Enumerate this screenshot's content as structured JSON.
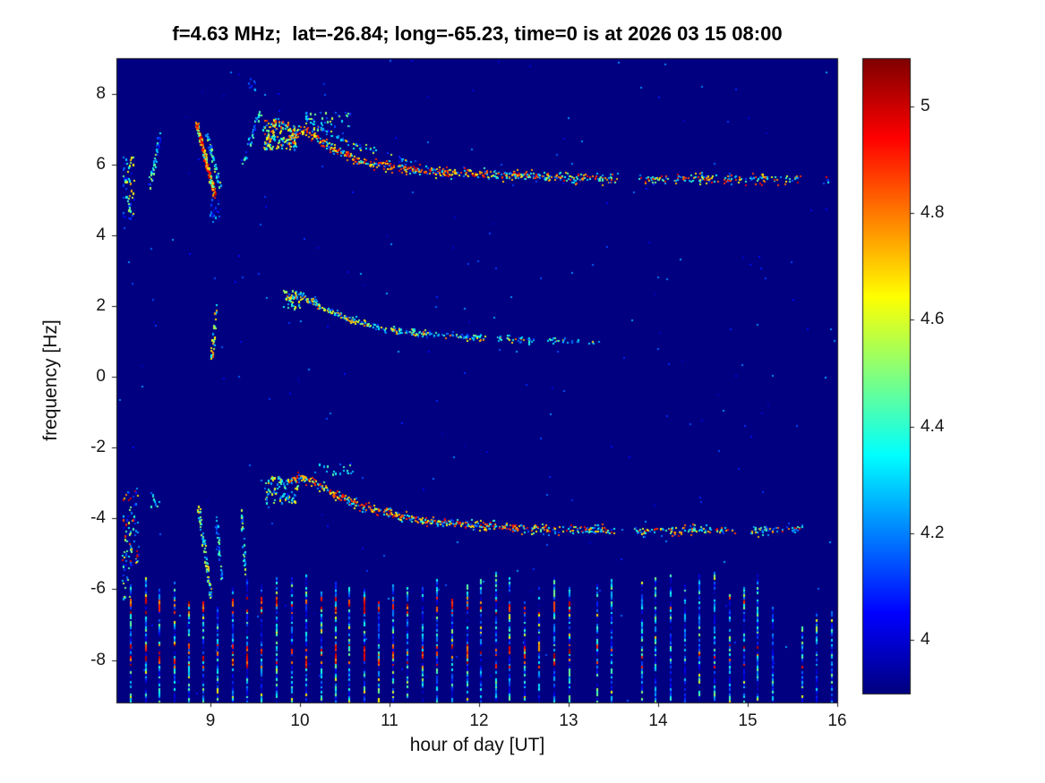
{
  "figure": {
    "background": "#ffffff",
    "text_color": "#111111"
  },
  "chart_data": {
    "type": "heatmap",
    "title": "f=4.63 MHz;  lat=-26.84; long=-65.23, time=0 is at 2026 03 15 08:00",
    "xlabel": "hour of day [UT]",
    "ylabel": "frequency [Hz]",
    "x_range": [
      7.95,
      16.0
    ],
    "y_range": [
      -9.2,
      9.0
    ],
    "x_ticks": [
      9,
      10,
      11,
      12,
      13,
      14,
      15,
      16
    ],
    "y_ticks": [
      8,
      6,
      4,
      2,
      0,
      -2,
      -4,
      -6,
      -8
    ],
    "grid": false,
    "colormap": "jet",
    "background_value_color": "#000080",
    "colorbar": {
      "range": [
        3.9,
        5.09
      ],
      "ticks": [
        4,
        4.2,
        4.4,
        4.6,
        4.8,
        5
      ],
      "position": "right"
    },
    "noise": {
      "count": 260,
      "vmin": 3.96,
      "vmax": 4.25
    },
    "traces": [
      {
        "name": "upper-doppler-trace",
        "points": [
          [
            9.88,
            6.75
          ],
          [
            10.0,
            7.0
          ],
          [
            10.05,
            6.95
          ],
          [
            10.15,
            6.8
          ],
          [
            10.3,
            6.55
          ],
          [
            10.5,
            6.3
          ],
          [
            10.7,
            6.1
          ],
          [
            11.0,
            5.95
          ],
          [
            11.3,
            5.85
          ],
          [
            11.7,
            5.78
          ],
          [
            12.2,
            5.72
          ],
          [
            12.7,
            5.68
          ],
          [
            13.2,
            5.62
          ],
          [
            13.7,
            5.6
          ],
          [
            14.2,
            5.62
          ],
          [
            14.7,
            5.63
          ],
          [
            15.2,
            5.6
          ],
          [
            15.55,
            5.6
          ],
          [
            15.9,
            5.58
          ]
        ],
        "jitter": 0.18,
        "hot": [
          4.6,
          5.0
        ],
        "cold": [
          4.1,
          4.5
        ],
        "hot_prob": [
          0.8,
          0.35
        ],
        "density": [
          1.0,
          0.45
        ],
        "gaps": [
          [
            13.55,
            13.78
          ],
          [
            15.6,
            15.82
          ]
        ]
      },
      {
        "name": "upper-secondary-trace",
        "points": [
          [
            10.05,
            7.35
          ],
          [
            10.3,
            6.95
          ],
          [
            10.6,
            6.55
          ],
          [
            10.95,
            6.3
          ],
          [
            11.3,
            6.08
          ]
        ],
        "jitter": 0.12,
        "hot": [
          4.5,
          4.8
        ],
        "cold": [
          4.05,
          4.4
        ],
        "hot_prob": [
          0.25,
          0.1
        ],
        "density": [
          0.35,
          0.15
        ],
        "gaps": []
      },
      {
        "name": "middle-doppler-trace",
        "points": [
          [
            9.85,
            2.25
          ],
          [
            10.0,
            2.3
          ],
          [
            10.15,
            2.1
          ],
          [
            10.35,
            1.85
          ],
          [
            10.6,
            1.6
          ],
          [
            10.9,
            1.4
          ],
          [
            11.3,
            1.25
          ],
          [
            11.8,
            1.15
          ],
          [
            12.3,
            1.08
          ],
          [
            12.8,
            1.02
          ],
          [
            13.3,
            1.0
          ]
        ],
        "jitter": 0.12,
        "hot": [
          4.55,
          4.85
        ],
        "cold": [
          4.1,
          4.5
        ],
        "hot_prob": [
          0.5,
          0.08
        ],
        "density": [
          0.9,
          0.3
        ],
        "gaps": [
          [
            12.05,
            12.2
          ],
          [
            12.6,
            12.75
          ]
        ]
      },
      {
        "name": "lower-doppler-trace",
        "points": [
          [
            9.88,
            -2.95
          ],
          [
            10.0,
            -2.8
          ],
          [
            10.1,
            -2.9
          ],
          [
            10.25,
            -3.1
          ],
          [
            10.45,
            -3.4
          ],
          [
            10.7,
            -3.65
          ],
          [
            11.0,
            -3.85
          ],
          [
            11.4,
            -4.05
          ],
          [
            11.9,
            -4.15
          ],
          [
            12.4,
            -4.25
          ],
          [
            12.9,
            -4.3
          ],
          [
            13.4,
            -4.3
          ],
          [
            13.9,
            -4.35
          ],
          [
            14.4,
            -4.3
          ],
          [
            14.9,
            -4.35
          ],
          [
            15.4,
            -4.3
          ],
          [
            15.6,
            -4.3
          ]
        ],
        "jitter": 0.16,
        "hot": [
          4.6,
          5.0
        ],
        "cold": [
          4.1,
          4.5
        ],
        "hot_prob": [
          0.75,
          0.3
        ],
        "density": [
          1.0,
          0.4
        ],
        "gaps": [
          [
            13.5,
            13.72
          ],
          [
            14.85,
            15.0
          ]
        ]
      }
    ],
    "clusters": [
      {
        "type": "box",
        "x0": 8.01,
        "x1": 8.14,
        "y0": 4.5,
        "y1": 6.3,
        "count": 55,
        "vmin": 4.0,
        "vmax": 4.75,
        "bias": 1.2
      },
      {
        "type": "line",
        "x0": 8.31,
        "y0": 5.35,
        "x1": 8.43,
        "y1": 6.85,
        "w": 0.25,
        "count": 45,
        "vmin": 4.05,
        "vmax": 4.55,
        "bias": 1.2
      },
      {
        "type": "line",
        "x0": 8.84,
        "y0": 7.15,
        "x1": 9.04,
        "y1": 5.15,
        "w": 0.18,
        "count": 200,
        "vmin": 4.3,
        "vmax": 5.05,
        "bias": 0.6
      },
      {
        "type": "line",
        "x0": 8.95,
        "y0": 6.9,
        "x1": 9.1,
        "y1": 5.4,
        "w": 0.12,
        "count": 60,
        "vmin": 4.1,
        "vmax": 4.6,
        "bias": 1.2
      },
      {
        "type": "box",
        "x0": 8.98,
        "x1": 9.1,
        "y0": 4.3,
        "y1": 5.1,
        "count": 22,
        "vmin": 3.98,
        "vmax": 4.3,
        "bias": 1.2
      },
      {
        "type": "line",
        "x0": 9.36,
        "y0": 6.1,
        "x1": 9.55,
        "y1": 7.55,
        "w": 0.3,
        "count": 40,
        "vmin": 4.05,
        "vmax": 4.5,
        "bias": 1.2
      },
      {
        "type": "box",
        "x0": 9.42,
        "x1": 9.5,
        "y0": 8.1,
        "y1": 8.45,
        "count": 8,
        "vmin": 4.0,
        "vmax": 4.3,
        "bias": 1.2
      },
      {
        "type": "box",
        "x0": 9.58,
        "x1": 9.95,
        "y0": 6.45,
        "y1": 7.3,
        "count": 150,
        "vmin": 4.15,
        "vmax": 4.9,
        "bias": 1.0
      },
      {
        "type": "line",
        "x0": 9.0,
        "y0": 0.35,
        "x1": 9.06,
        "y1": 2.05,
        "w": 0.1,
        "count": 32,
        "vmin": 4.2,
        "vmax": 4.9,
        "bias": 1.0
      },
      {
        "type": "box",
        "x0": 9.8,
        "x1": 10.0,
        "y0": 1.95,
        "y1": 2.5,
        "count": 35,
        "vmin": 4.2,
        "vmax": 4.7,
        "bias": 1.1
      },
      {
        "type": "box",
        "x0": 8.01,
        "x1": 8.2,
        "y0": -5.3,
        "y1": -3.1,
        "count": 70,
        "vmin": 4.0,
        "vmax": 5.0,
        "bias": 1.4
      },
      {
        "type": "box",
        "x0": 8.33,
        "x1": 8.42,
        "y0": -3.7,
        "y1": -3.3,
        "count": 10,
        "vmin": 4.1,
        "vmax": 4.5,
        "bias": 1.2
      },
      {
        "type": "line",
        "x0": 8.86,
        "y0": -3.6,
        "x1": 9.0,
        "y1": -6.2,
        "w": 0.15,
        "count": 85,
        "vmin": 4.1,
        "vmax": 4.75,
        "bias": 1.1
      },
      {
        "type": "line",
        "x0": 9.05,
        "y0": -3.9,
        "x1": 9.12,
        "y1": -5.7,
        "w": 0.1,
        "count": 35,
        "vmin": 4.05,
        "vmax": 4.5,
        "bias": 1.2
      },
      {
        "type": "line",
        "x0": 9.34,
        "y0": -3.55,
        "x1": 9.38,
        "y1": -5.6,
        "w": 0.08,
        "count": 30,
        "vmin": 4.1,
        "vmax": 4.6,
        "bias": 1.2
      },
      {
        "type": "box",
        "x0": 9.6,
        "x1": 9.97,
        "y0": -3.55,
        "y1": -2.8,
        "count": 90,
        "vmin": 4.15,
        "vmax": 4.75,
        "bias": 1.1
      },
      {
        "type": "box",
        "x0": 8.0,
        "x1": 8.1,
        "y0": -6.3,
        "y1": -4.9,
        "count": 25,
        "vmin": 4.0,
        "vmax": 4.6,
        "bias": 1.2
      },
      {
        "type": "box",
        "x0": 10.15,
        "x1": 10.6,
        "y0": -2.75,
        "y1": -2.45,
        "count": 18,
        "vmin": 4.1,
        "vmax": 4.5,
        "bias": 1.2
      },
      {
        "type": "box",
        "x0": 10.05,
        "x1": 10.55,
        "y0": 6.9,
        "y1": 7.5,
        "count": 40,
        "vmin": 4.1,
        "vmax": 4.6,
        "bias": 1.2
      }
    ],
    "comb": {
      "x_start": 8.1,
      "x_end": 15.98,
      "spacing": 0.163,
      "y_top": -5.45,
      "y_bottom": -9.15,
      "red_bands": [
        [
          -6.65,
          -6.2
        ],
        [
          -8.2,
          -7.5
        ]
      ],
      "red_prob_early": 0.55,
      "red_prob_late": 0.12,
      "late_after": 13.3,
      "short_after": 15.25,
      "base_range": [
        3.95,
        4.5
      ],
      "red_range": [
        4.75,
        5.05
      ]
    }
  }
}
